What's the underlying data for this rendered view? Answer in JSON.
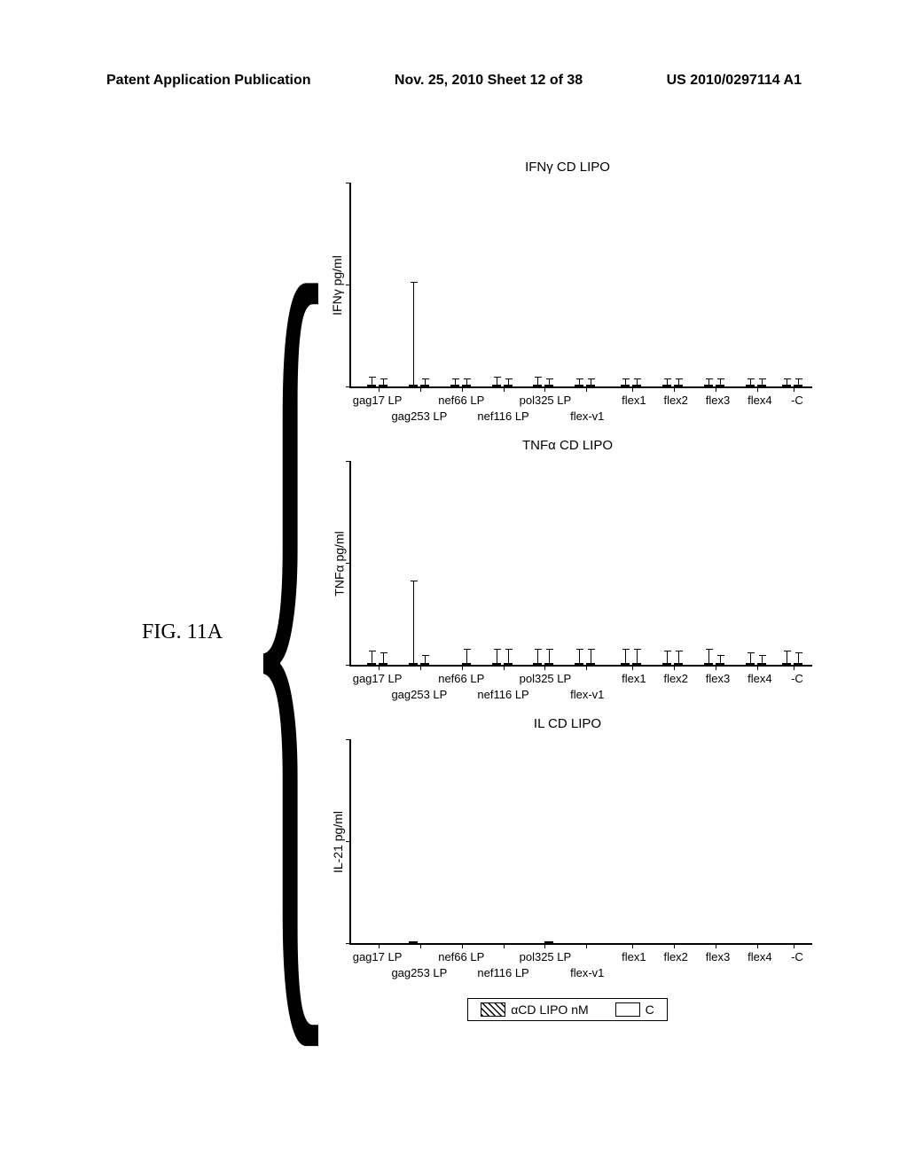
{
  "header": {
    "left": "Patent Application Publication",
    "center": "Nov. 25, 2010  Sheet 12 of 38",
    "right": "US 2010/0297114 A1"
  },
  "figure_label": "FIG. 11A",
  "legend": {
    "a": "αCD   LIPO   nM",
    "b": "C"
  },
  "x_categories_top": [
    "gag17 LP",
    "nef66 LP",
    "pol325 LP",
    "flex1",
    "flex2",
    "flex3",
    "flex4",
    "-C"
  ],
  "x_categories_bottom": [
    "gag253 LP",
    "nef116 LP",
    "flex-v1"
  ],
  "charts": [
    {
      "title": "IFNγ CD   LIPO",
      "ylabel": "IFNγ pg/ml",
      "type": "bar",
      "ymax": 100,
      "groups": [
        {
          "a": 6,
          "b": 3,
          "ea": 4,
          "eb": 3
        },
        {
          "a": 95,
          "b": 2,
          "ea": 50,
          "eb": 3
        },
        {
          "a": 4,
          "b": 3,
          "ea": 3,
          "eb": 3
        },
        {
          "a": 5,
          "b": 3,
          "ea": 4,
          "eb": 3
        },
        {
          "a": 6,
          "b": 3,
          "ea": 4,
          "eb": 3
        },
        {
          "a": 4,
          "b": 3,
          "ea": 3,
          "eb": 3
        },
        {
          "a": 4,
          "b": 3,
          "ea": 3,
          "eb": 3
        },
        {
          "a": 4,
          "b": 3,
          "ea": 3,
          "eb": 3
        },
        {
          "a": 4,
          "b": 3,
          "ea": 3,
          "eb": 3
        },
        {
          "a": 4,
          "b": 3,
          "ea": 3,
          "eb": 3
        },
        {
          "a": 4,
          "b": 3,
          "ea": 3,
          "eb": 3
        }
      ]
    },
    {
      "title": "TNFα CD   LIPO",
      "ylabel": "TNFα pg/ml",
      "type": "bar",
      "ymax": 100,
      "groups": [
        {
          "a": 12,
          "b": 8,
          "ea": 6,
          "eb": 5
        },
        {
          "a": 80,
          "b": 5,
          "ea": 40,
          "eb": 4
        },
        {
          "a": 0,
          "b": 8,
          "ea": 0,
          "eb": 7
        },
        {
          "a": 10,
          "b": 8,
          "ea": 7,
          "eb": 7
        },
        {
          "a": 12,
          "b": 8,
          "ea": 7,
          "eb": 7
        },
        {
          "a": 12,
          "b": 8,
          "ea": 7,
          "eb": 7
        },
        {
          "a": 12,
          "b": 8,
          "ea": 7,
          "eb": 7
        },
        {
          "a": 10,
          "b": 7,
          "ea": 6,
          "eb": 6
        },
        {
          "a": 12,
          "b": 5,
          "ea": 7,
          "eb": 4
        },
        {
          "a": 8,
          "b": 5,
          "ea": 5,
          "eb": 4
        },
        {
          "a": 10,
          "b": 7,
          "ea": 6,
          "eb": 5
        }
      ]
    },
    {
      "title": "IL   CD   LIPO",
      "ylabel": "IL-21 pg/ml",
      "type": "bar",
      "ymax": 100,
      "groups": [
        {
          "a": 0,
          "b": 0,
          "ea": 0,
          "eb": 0
        },
        {
          "a": 78,
          "b": 0,
          "ea": 0,
          "eb": 0
        },
        {
          "a": 0,
          "b": 0,
          "ea": 0,
          "eb": 0
        },
        {
          "a": 0,
          "b": 0,
          "ea": 0,
          "eb": 0
        },
        {
          "a": 0,
          "b": 4,
          "ea": 0,
          "eb": 0
        },
        {
          "a": 0,
          "b": 0,
          "ea": 0,
          "eb": 0
        },
        {
          "a": 0,
          "b": 0,
          "ea": 0,
          "eb": 0
        },
        {
          "a": 0,
          "b": 0,
          "ea": 0,
          "eb": 0
        },
        {
          "a": 0,
          "b": 0,
          "ea": 0,
          "eb": 0
        },
        {
          "a": 0,
          "b": 0,
          "ea": 0,
          "eb": 0
        },
        {
          "a": 0,
          "b": 0,
          "ea": 0,
          "eb": 0
        }
      ]
    }
  ],
  "group_positions_pct": [
    6,
    15,
    24,
    33,
    42,
    51,
    61,
    70,
    79,
    88,
    96
  ],
  "x_top_positions_pct": [
    6,
    24,
    42,
    61,
    70,
    79,
    88,
    96
  ],
  "x_bottom_positions_pct": [
    15,
    33,
    51
  ],
  "colors": {
    "stroke": "#000000",
    "background": "#ffffff"
  }
}
